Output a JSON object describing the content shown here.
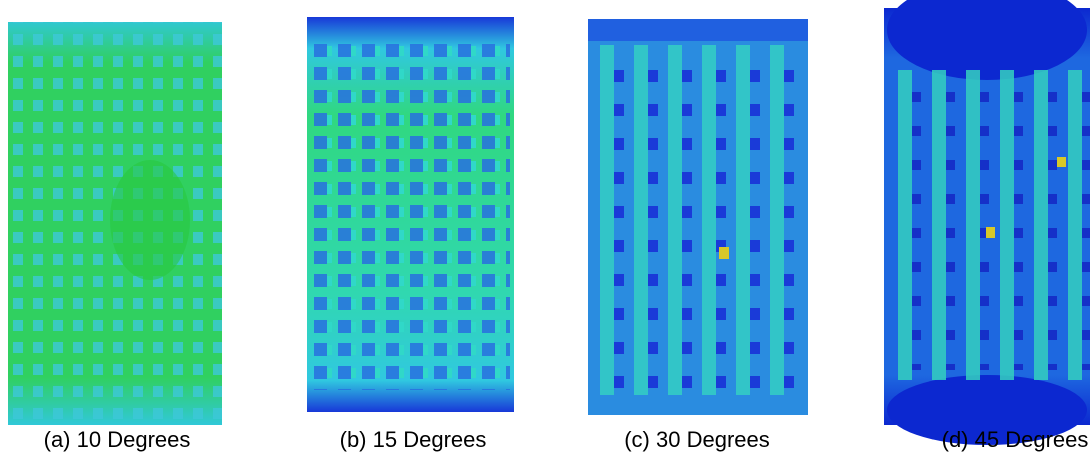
{
  "panels": [
    {
      "caption": "(a) 10 Degrees"
    },
    {
      "caption": "(b) 15 Degrees"
    },
    {
      "caption": "(c) 30 Degrees"
    },
    {
      "caption": "(d) 45 Degrees"
    }
  ]
}
